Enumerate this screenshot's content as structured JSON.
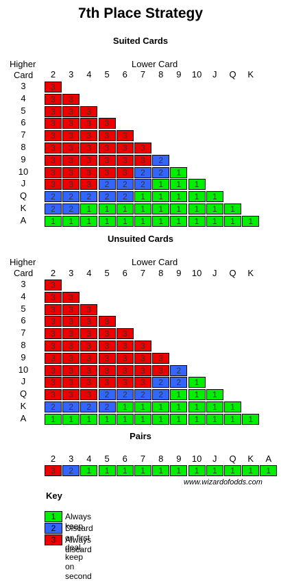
{
  "page": {
    "title": "7th Place Strategy",
    "credit": "www.wizardofodds.com"
  },
  "colors": {
    "1": "#00ee00",
    "2": "#3366ff",
    "3": "#ee0000"
  },
  "suited": {
    "title": "Suited Cards",
    "higher_label": "Higher",
    "card_label": "Card",
    "lower_label": "Lower Card",
    "columns": [
      "2",
      "3",
      "4",
      "5",
      "6",
      "7",
      "8",
      "9",
      "10",
      "J",
      "Q",
      "K"
    ],
    "rows": [
      {
        "label": "3",
        "values": [
          3
        ]
      },
      {
        "label": "4",
        "values": [
          3,
          3
        ]
      },
      {
        "label": "5",
        "values": [
          3,
          3,
          3
        ]
      },
      {
        "label": "6",
        "values": [
          3,
          3,
          3,
          3
        ]
      },
      {
        "label": "7",
        "values": [
          3,
          3,
          3,
          3,
          3
        ]
      },
      {
        "label": "8",
        "values": [
          3,
          3,
          3,
          3,
          3,
          3
        ]
      },
      {
        "label": "9",
        "values": [
          3,
          3,
          3,
          3,
          3,
          3,
          2
        ]
      },
      {
        "label": "10",
        "values": [
          3,
          3,
          3,
          3,
          3,
          2,
          2,
          1
        ]
      },
      {
        "label": "J",
        "values": [
          3,
          3,
          3,
          2,
          2,
          2,
          1,
          1,
          1
        ]
      },
      {
        "label": "Q",
        "values": [
          2,
          2,
          2,
          2,
          2,
          1,
          1,
          1,
          1,
          1
        ]
      },
      {
        "label": "K",
        "values": [
          2,
          2,
          1,
          1,
          1,
          1,
          1,
          1,
          1,
          1,
          1
        ]
      },
      {
        "label": "A",
        "values": [
          1,
          1,
          1,
          1,
          1,
          1,
          1,
          1,
          1,
          1,
          1,
          1
        ]
      }
    ]
  },
  "unsuited": {
    "title": "Unsuited Cards",
    "higher_label": "Higher",
    "card_label": "Card",
    "lower_label": "Lower Card",
    "columns": [
      "2",
      "3",
      "4",
      "5",
      "6",
      "7",
      "8",
      "9",
      "10",
      "J",
      "Q",
      "K"
    ],
    "rows": [
      {
        "label": "3",
        "values": [
          3
        ]
      },
      {
        "label": "4",
        "values": [
          3,
          3
        ]
      },
      {
        "label": "5",
        "values": [
          3,
          3,
          3
        ]
      },
      {
        "label": "6",
        "values": [
          3,
          3,
          3,
          3
        ]
      },
      {
        "label": "7",
        "values": [
          3,
          3,
          3,
          3,
          3
        ]
      },
      {
        "label": "8",
        "values": [
          3,
          3,
          3,
          3,
          3,
          3
        ]
      },
      {
        "label": "9",
        "values": [
          3,
          3,
          3,
          3,
          3,
          3,
          3
        ]
      },
      {
        "label": "10",
        "values": [
          3,
          3,
          3,
          3,
          3,
          3,
          3,
          2
        ]
      },
      {
        "label": "J",
        "values": [
          3,
          3,
          3,
          3,
          3,
          3,
          2,
          2,
          1
        ]
      },
      {
        "label": "Q",
        "values": [
          3,
          3,
          3,
          2,
          2,
          2,
          2,
          1,
          1,
          1
        ]
      },
      {
        "label": "K",
        "values": [
          2,
          2,
          2,
          2,
          1,
          1,
          1,
          1,
          1,
          1,
          1
        ]
      },
      {
        "label": "A",
        "values": [
          1,
          1,
          1,
          1,
          1,
          1,
          1,
          1,
          1,
          1,
          1,
          1
        ]
      }
    ]
  },
  "pairs": {
    "title": "Pairs",
    "columns": [
      "2",
      "3",
      "4",
      "5",
      "6",
      "7",
      "8",
      "9",
      "10",
      "J",
      "Q",
      "K",
      "A"
    ],
    "values": [
      3,
      2,
      1,
      1,
      1,
      1,
      1,
      1,
      1,
      1,
      1,
      1,
      1
    ]
  },
  "key": {
    "title": "Key",
    "items": [
      {
        "value": "1",
        "text": "Always keep"
      },
      {
        "value": "2",
        "text": "Discard on first deal, keep on second"
      },
      {
        "value": "3",
        "text": "Always discard"
      }
    ]
  }
}
